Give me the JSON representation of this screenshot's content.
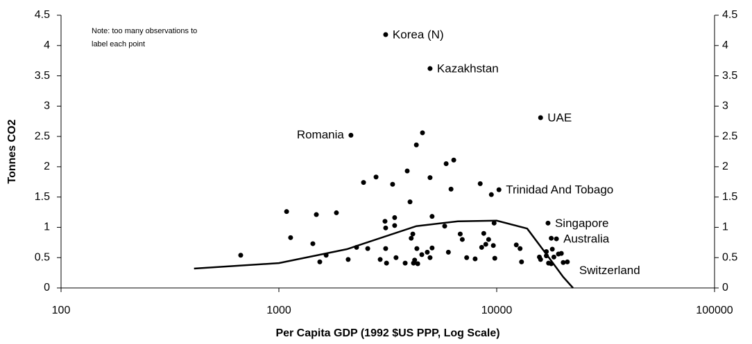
{
  "chart_data": {
    "type": "scatter",
    "xlabel": "Per Capita GDP (1992 $US PPP, Log Scale)",
    "ylabel": "Tonnes CO2",
    "note": [
      "Note: too many observations to",
      "label each point"
    ],
    "xscale": "log",
    "xlim": [
      100,
      100000
    ],
    "xticks": [
      100,
      1000,
      10000,
      100000
    ],
    "ylim": [
      0,
      4.5
    ],
    "yticks": [
      0,
      0.5,
      1,
      1.5,
      2,
      2.5,
      3,
      3.5,
      4,
      4.5
    ],
    "color": "#000000",
    "x": [
      668,
      1085,
      1132,
      1432,
      1486,
      1541,
      1648,
      1837,
      2080,
      2142,
      2273,
      2447,
      2558,
      2793,
      2918,
      3070,
      3092,
      3092,
      3092,
      3120,
      3327,
      3400,
      3400,
      3450,
      3800,
      3883,
      4000,
      4050,
      4120,
      4150,
      4200,
      4277,
      4300,
      4340,
      4563,
      4530,
      4800,
      4943,
      4943,
      5050,
      4943,
      5050,
      5770,
      5860,
      6000,
      6170,
      6350,
      6800,
      6950,
      7280,
      7960,
      8400,
      8530,
      8720,
      8910,
      9180,
      9450,
      9650,
      9730,
      9800,
      10240,
      12300,
      12800,
      13000,
      15900,
      15700,
      15900,
      16900,
      16900,
      17200,
      17300,
      17800,
      17800,
      18000,
      18300,
      18800,
      19200,
      19800,
      20200,
      21100
    ],
    "values": [
      0.54,
      1.26,
      0.83,
      0.73,
      1.21,
      0.43,
      0.54,
      1.24,
      0.47,
      2.52,
      0.67,
      1.74,
      0.65,
      1.83,
      0.47,
      1.1,
      0.99,
      0.65,
      4.18,
      0.41,
      1.71,
      1.16,
      1.03,
      0.5,
      0.41,
      1.93,
      1.42,
      0.82,
      0.89,
      0.41,
      0.46,
      2.36,
      0.65,
      0.4,
      2.56,
      0.55,
      0.59,
      3.62,
      1.82,
      0.66,
      0.5,
      1.18,
      1.02,
      2.05,
      0.59,
      1.63,
      2.11,
      0.89,
      0.8,
      0.5,
      0.48,
      1.72,
      0.67,
      0.9,
      0.72,
      0.8,
      1.54,
      0.7,
      1.07,
      0.49,
      1.62,
      0.71,
      0.65,
      0.43,
      2.81,
      0.51,
      0.47,
      0.53,
      0.6,
      1.07,
      0.41,
      0.4,
      0.82,
      0.64,
      0.51,
      0.81,
      0.56,
      0.57,
      0.42,
      0.43
    ],
    "labels": [
      null,
      null,
      null,
      null,
      null,
      null,
      null,
      null,
      null,
      "Romania",
      null,
      null,
      null,
      null,
      null,
      null,
      null,
      null,
      "Korea (N)",
      null,
      null,
      null,
      null,
      null,
      null,
      null,
      null,
      null,
      null,
      null,
      null,
      null,
      null,
      null,
      null,
      null,
      null,
      "Kazakhstan",
      null,
      null,
      null,
      null,
      null,
      null,
      null,
      null,
      null,
      null,
      null,
      null,
      null,
      null,
      null,
      null,
      null,
      null,
      null,
      null,
      null,
      null,
      "Trinidad And Tobago",
      null,
      null,
      null,
      "UAE",
      null,
      null,
      null,
      null,
      "Singapore",
      null,
      null,
      null,
      null,
      null,
      "Australia",
      null,
      null,
      null,
      "Switzerland"
    ],
    "curve": {
      "x": [
        408,
        1000,
        2051,
        4276,
        6630,
        10000,
        13800,
        17200,
        20200,
        22400
      ],
      "values": [
        0.32,
        0.41,
        0.64,
        1.02,
        1.1,
        1.11,
        0.98,
        0.52,
        0.18,
        0
      ]
    }
  }
}
